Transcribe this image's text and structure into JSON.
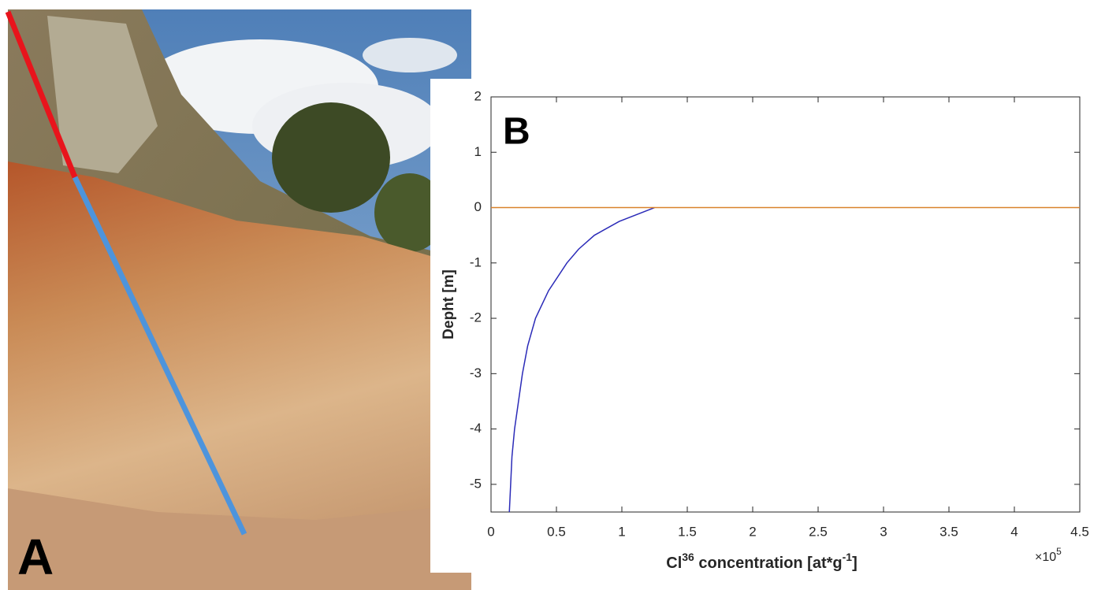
{
  "photo": {
    "label": "A"
  },
  "chart_data": {
    "type": "line",
    "panel_label": "B",
    "x_label": [
      "Cl",
      "36",
      " concentration [at*g",
      "-1",
      "]"
    ],
    "y_label": "Depht [m]",
    "x_multiplier": {
      "base": "×10",
      "exponent": "5"
    },
    "xlim": [
      0,
      4.5
    ],
    "xticks": [
      0,
      0.5,
      1,
      1.5,
      2,
      2.5,
      3,
      3.5,
      4,
      4.5
    ],
    "ylim": [
      -5.5,
      2
    ],
    "yticks": [
      -5,
      -4,
      -3,
      -2,
      -1,
      0,
      1,
      2
    ],
    "grid": false,
    "series": [
      {
        "color": "#2b2bb8",
        "x": [
          1.25,
          0.98,
          0.79,
          0.67,
          0.58,
          0.44,
          0.34,
          0.28,
          0.24,
          0.21,
          0.18,
          0.16,
          0.15,
          0.14
        ],
        "values": [
          0,
          -0.25,
          -0.5,
          -0.75,
          -1,
          -1.5,
          -2,
          -2.5,
          -3,
          -3.5,
          -4,
          -4.5,
          -5,
          -5.5
        ]
      },
      {
        "color": "#d9822b",
        "x": [
          0,
          4.5
        ],
        "values": [
          0,
          0
        ]
      }
    ]
  }
}
